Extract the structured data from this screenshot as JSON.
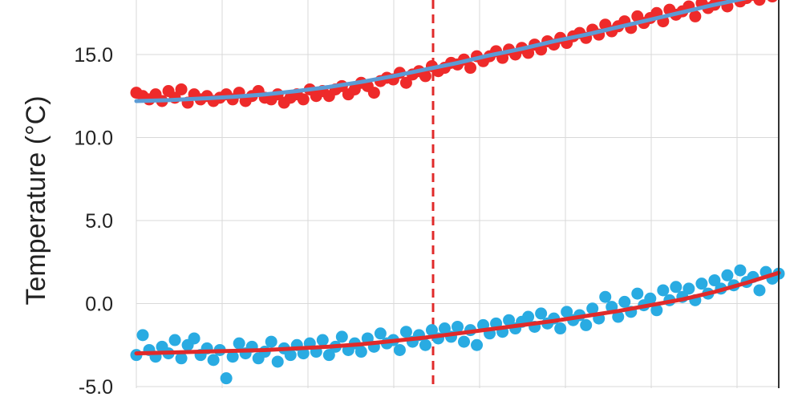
{
  "chart_data": {
    "type": "scatter",
    "ylabel": "Temperature (°C)",
    "ylim": [
      -5.0,
      18.8
    ],
    "yticks": [
      "15.0",
      "10.0",
      "5.0",
      "0.0",
      "-5.0"
    ],
    "ytick_values": [
      15,
      10,
      5,
      0,
      -5
    ],
    "grid": true,
    "vertical_marker": {
      "style": "dashed",
      "color": "#e02a2a"
    },
    "series": [
      {
        "role": "upper",
        "point_color": "#ee2a2a",
        "fit_color": "#5b9bd5",
        "fit_curve": [
          [
            0.0,
            12.2
          ],
          [
            0.05,
            12.25
          ],
          [
            0.1,
            12.35
          ],
          [
            0.15,
            12.45
          ],
          [
            0.2,
            12.6
          ],
          [
            0.25,
            12.8
          ],
          [
            0.3,
            13.05
          ],
          [
            0.35,
            13.35
          ],
          [
            0.4,
            13.7
          ],
          [
            0.45,
            14.1
          ],
          [
            0.5,
            14.5
          ],
          [
            0.55,
            14.95
          ],
          [
            0.6,
            15.35
          ],
          [
            0.65,
            15.8
          ],
          [
            0.7,
            16.2
          ],
          [
            0.75,
            16.65
          ],
          [
            0.8,
            17.1
          ],
          [
            0.85,
            17.55
          ],
          [
            0.9,
            18.0
          ],
          [
            0.95,
            18.4
          ],
          [
            1.0,
            18.8
          ]
        ],
        "points": [
          [
            0.0,
            12.7
          ],
          [
            0.01,
            12.5
          ],
          [
            0.02,
            12.3
          ],
          [
            0.03,
            12.6
          ],
          [
            0.04,
            12.2
          ],
          [
            0.05,
            12.8
          ],
          [
            0.06,
            12.4
          ],
          [
            0.07,
            12.9
          ],
          [
            0.08,
            12.1
          ],
          [
            0.09,
            12.6
          ],
          [
            0.1,
            12.3
          ],
          [
            0.11,
            12.5
          ],
          [
            0.12,
            12.2
          ],
          [
            0.13,
            12.4
          ],
          [
            0.14,
            12.6
          ],
          [
            0.15,
            12.3
          ],
          [
            0.16,
            12.7
          ],
          [
            0.17,
            12.2
          ],
          [
            0.18,
            12.5
          ],
          [
            0.19,
            12.8
          ],
          [
            0.2,
            12.4
          ],
          [
            0.21,
            12.3
          ],
          [
            0.22,
            12.6
          ],
          [
            0.23,
            12.1
          ],
          [
            0.24,
            12.4
          ],
          [
            0.25,
            12.6
          ],
          [
            0.26,
            12.3
          ],
          [
            0.27,
            12.9
          ],
          [
            0.28,
            12.5
          ],
          [
            0.29,
            12.8
          ],
          [
            0.3,
            12.5
          ],
          [
            0.31,
            12.9
          ],
          [
            0.32,
            13.1
          ],
          [
            0.33,
            12.6
          ],
          [
            0.34,
            12.9
          ],
          [
            0.35,
            13.3
          ],
          [
            0.36,
            13.1
          ],
          [
            0.37,
            12.7
          ],
          [
            0.38,
            13.4
          ],
          [
            0.39,
            13.6
          ],
          [
            0.4,
            13.5
          ],
          [
            0.41,
            13.9
          ],
          [
            0.42,
            13.3
          ],
          [
            0.43,
            13.8
          ],
          [
            0.44,
            14.0
          ],
          [
            0.45,
            13.7
          ],
          [
            0.46,
            14.3
          ],
          [
            0.47,
            14.0
          ],
          [
            0.48,
            14.2
          ],
          [
            0.49,
            14.5
          ],
          [
            0.5,
            14.4
          ],
          [
            0.51,
            14.7
          ],
          [
            0.52,
            14.2
          ],
          [
            0.53,
            14.9
          ],
          [
            0.54,
            14.6
          ],
          [
            0.55,
            14.9
          ],
          [
            0.56,
            15.2
          ],
          [
            0.57,
            14.8
          ],
          [
            0.58,
            15.3
          ],
          [
            0.59,
            15.0
          ],
          [
            0.6,
            15.4
          ],
          [
            0.61,
            15.1
          ],
          [
            0.62,
            15.6
          ],
          [
            0.63,
            15.3
          ],
          [
            0.64,
            15.8
          ],
          [
            0.65,
            15.6
          ],
          [
            0.66,
            16.0
          ],
          [
            0.67,
            15.7
          ],
          [
            0.68,
            16.1
          ],
          [
            0.69,
            16.3
          ],
          [
            0.7,
            16.0
          ],
          [
            0.71,
            16.5
          ],
          [
            0.72,
            16.2
          ],
          [
            0.73,
            16.8
          ],
          [
            0.74,
            16.4
          ],
          [
            0.75,
            16.7
          ],
          [
            0.76,
            17.0
          ],
          [
            0.77,
            16.6
          ],
          [
            0.78,
            17.3
          ],
          [
            0.79,
            16.9
          ],
          [
            0.8,
            17.2
          ],
          [
            0.81,
            17.5
          ],
          [
            0.82,
            17.0
          ],
          [
            0.83,
            17.7
          ],
          [
            0.84,
            17.4
          ],
          [
            0.85,
            17.6
          ],
          [
            0.86,
            17.9
          ],
          [
            0.87,
            17.3
          ],
          [
            0.88,
            18.1
          ],
          [
            0.89,
            17.8
          ],
          [
            0.9,
            18.0
          ],
          [
            0.91,
            18.3
          ],
          [
            0.92,
            17.9
          ],
          [
            0.93,
            18.5
          ],
          [
            0.94,
            18.2
          ],
          [
            0.95,
            18.4
          ],
          [
            0.96,
            18.6
          ],
          [
            0.97,
            18.3
          ],
          [
            0.98,
            18.7
          ],
          [
            0.99,
            18.5
          ],
          [
            1.0,
            18.8
          ]
        ]
      },
      {
        "role": "lower",
        "point_color": "#29abe2",
        "fit_color": "#e02a2a",
        "fit_curve": [
          [
            0.0,
            -3.0
          ],
          [
            0.05,
            -2.95
          ],
          [
            0.1,
            -2.9
          ],
          [
            0.15,
            -2.85
          ],
          [
            0.2,
            -2.8
          ],
          [
            0.25,
            -2.7
          ],
          [
            0.3,
            -2.6
          ],
          [
            0.35,
            -2.45
          ],
          [
            0.4,
            -2.25
          ],
          [
            0.45,
            -2.05
          ],
          [
            0.5,
            -1.8
          ],
          [
            0.55,
            -1.55
          ],
          [
            0.6,
            -1.3
          ],
          [
            0.65,
            -1.05
          ],
          [
            0.7,
            -0.75
          ],
          [
            0.75,
            -0.45
          ],
          [
            0.8,
            -0.1
          ],
          [
            0.85,
            0.25
          ],
          [
            0.9,
            0.7
          ],
          [
            0.95,
            1.25
          ],
          [
            1.0,
            1.85
          ]
        ],
        "points": [
          [
            0.0,
            -3.1
          ],
          [
            0.01,
            -1.9
          ],
          [
            0.02,
            -2.8
          ],
          [
            0.03,
            -3.2
          ],
          [
            0.04,
            -2.6
          ],
          [
            0.05,
            -3.0
          ],
          [
            0.06,
            -2.2
          ],
          [
            0.07,
            -3.3
          ],
          [
            0.08,
            -2.5
          ],
          [
            0.09,
            -2.1
          ],
          [
            0.1,
            -3.1
          ],
          [
            0.11,
            -2.7
          ],
          [
            0.12,
            -3.4
          ],
          [
            0.13,
            -2.8
          ],
          [
            0.14,
            -4.5
          ],
          [
            0.15,
            -3.2
          ],
          [
            0.16,
            -2.4
          ],
          [
            0.17,
            -3.0
          ],
          [
            0.18,
            -2.6
          ],
          [
            0.19,
            -3.3
          ],
          [
            0.2,
            -2.9
          ],
          [
            0.21,
            -2.3
          ],
          [
            0.22,
            -3.5
          ],
          [
            0.23,
            -2.7
          ],
          [
            0.24,
            -3.1
          ],
          [
            0.25,
            -2.5
          ],
          [
            0.26,
            -3.0
          ],
          [
            0.27,
            -2.4
          ],
          [
            0.28,
            -2.9
          ],
          [
            0.29,
            -2.2
          ],
          [
            0.3,
            -3.1
          ],
          [
            0.31,
            -2.6
          ],
          [
            0.32,
            -2.0
          ],
          [
            0.33,
            -2.8
          ],
          [
            0.34,
            -2.4
          ],
          [
            0.35,
            -2.9
          ],
          [
            0.36,
            -2.1
          ],
          [
            0.37,
            -2.6
          ],
          [
            0.38,
            -1.8
          ],
          [
            0.39,
            -2.4
          ],
          [
            0.4,
            -2.2
          ],
          [
            0.41,
            -2.8
          ],
          [
            0.42,
            -1.7
          ],
          [
            0.43,
            -2.3
          ],
          [
            0.44,
            -1.9
          ],
          [
            0.45,
            -2.5
          ],
          [
            0.46,
            -1.6
          ],
          [
            0.47,
            -2.1
          ],
          [
            0.48,
            -1.5
          ],
          [
            0.49,
            -2.0
          ],
          [
            0.5,
            -1.4
          ],
          [
            0.51,
            -2.3
          ],
          [
            0.52,
            -1.6
          ],
          [
            0.53,
            -2.5
          ],
          [
            0.54,
            -1.3
          ],
          [
            0.55,
            -1.8
          ],
          [
            0.56,
            -1.2
          ],
          [
            0.57,
            -1.7
          ],
          [
            0.58,
            -1.0
          ],
          [
            0.59,
            -1.5
          ],
          [
            0.6,
            -1.1
          ],
          [
            0.61,
            -0.8
          ],
          [
            0.62,
            -1.4
          ],
          [
            0.63,
            -0.6
          ],
          [
            0.64,
            -1.2
          ],
          [
            0.65,
            -0.9
          ],
          [
            0.66,
            -1.5
          ],
          [
            0.67,
            -0.5
          ],
          [
            0.68,
            -1.0
          ],
          [
            0.69,
            -0.7
          ],
          [
            0.7,
            -1.3
          ],
          [
            0.71,
            -0.3
          ],
          [
            0.72,
            -0.9
          ],
          [
            0.73,
            0.4
          ],
          [
            0.74,
            -0.2
          ],
          [
            0.75,
            -0.8
          ],
          [
            0.76,
            0.1
          ],
          [
            0.77,
            -0.5
          ],
          [
            0.78,
            0.6
          ],
          [
            0.79,
            -0.1
          ],
          [
            0.8,
            0.3
          ],
          [
            0.81,
            -0.4
          ],
          [
            0.82,
            0.8
          ],
          [
            0.83,
            0.2
          ],
          [
            0.84,
            1.0
          ],
          [
            0.85,
            0.4
          ],
          [
            0.86,
            0.9
          ],
          [
            0.87,
            0.2
          ],
          [
            0.88,
            1.2
          ],
          [
            0.89,
            0.6
          ],
          [
            0.9,
            1.4
          ],
          [
            0.91,
            0.9
          ],
          [
            0.92,
            1.7
          ],
          [
            0.93,
            1.1
          ],
          [
            0.94,
            2.0
          ],
          [
            0.95,
            1.3
          ],
          [
            0.96,
            1.6
          ],
          [
            0.97,
            0.8
          ],
          [
            0.98,
            1.9
          ],
          [
            0.99,
            1.5
          ],
          [
            1.0,
            1.8
          ]
        ]
      }
    ]
  }
}
